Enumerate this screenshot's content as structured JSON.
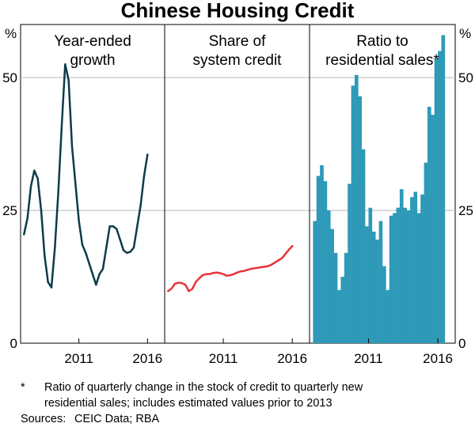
{
  "chart_data": {
    "type": "multi-panel",
    "title": "Chinese Housing Credit",
    "y_unit_left": "%",
    "y_unit_right": "%",
    "ylim": [
      0,
      60
    ],
    "yticks": [
      0,
      25,
      50
    ],
    "ytick_labels": [
      "0",
      "25",
      "50"
    ],
    "grid": true,
    "x_ticks": [
      2011,
      2016
    ],
    "x_tick_labels": [
      "2011",
      "2016"
    ],
    "xlim": [
      2006.75,
      2017.25
    ],
    "panels": [
      {
        "id": "growth",
        "type": "line",
        "label_lines": [
          "Year-ended",
          "growth"
        ],
        "color": "#0d3b4a",
        "x": [
          2007.0,
          2007.25,
          2007.5,
          2007.75,
          2008.0,
          2008.25,
          2008.5,
          2008.75,
          2009.0,
          2009.25,
          2009.5,
          2009.75,
          2010.0,
          2010.25,
          2010.5,
          2010.75,
          2011.0,
          2011.25,
          2011.5,
          2011.75,
          2012.0,
          2012.25,
          2012.5,
          2012.75,
          2013.0,
          2013.25,
          2013.5,
          2013.75,
          2014.0,
          2014.25,
          2014.5,
          2014.75,
          2015.0,
          2015.25,
          2015.5,
          2015.75,
          2016.0
        ],
        "values": [
          20.5,
          23.5,
          29.5,
          32.5,
          31.0,
          25.0,
          16.5,
          11.5,
          10.5,
          18.0,
          28.5,
          41.0,
          52.5,
          49.5,
          37.0,
          30.0,
          23.0,
          18.5,
          17.0,
          15.0,
          13.0,
          11.0,
          13.0,
          14.0,
          18.0,
          22.0,
          22.0,
          21.5,
          19.5,
          17.5,
          17.0,
          17.2,
          18.0,
          22.0,
          26.0,
          31.5,
          35.5
        ]
      },
      {
        "id": "share",
        "type": "line",
        "label_lines": [
          "Share of",
          "system credit"
        ],
        "color": "#e8333a",
        "x": [
          2007.0,
          2007.25,
          2007.5,
          2007.75,
          2008.0,
          2008.25,
          2008.5,
          2008.75,
          2009.0,
          2009.25,
          2009.5,
          2009.75,
          2010.0,
          2010.25,
          2010.5,
          2010.75,
          2011.0,
          2011.25,
          2011.5,
          2011.75,
          2012.0,
          2012.25,
          2012.5,
          2012.75,
          2013.0,
          2013.25,
          2013.5,
          2013.75,
          2014.0,
          2014.25,
          2014.5,
          2014.75,
          2015.0,
          2015.25,
          2015.5,
          2015.75,
          2016.0
        ],
        "values": [
          9.8,
          10.3,
          11.2,
          11.4,
          11.3,
          11.0,
          9.8,
          10.2,
          11.5,
          12.2,
          12.8,
          13.0,
          13.0,
          13.2,
          13.3,
          13.2,
          13.0,
          12.7,
          12.8,
          13.0,
          13.3,
          13.5,
          13.6,
          13.8,
          14.0,
          14.1,
          14.2,
          14.3,
          14.4,
          14.5,
          14.8,
          15.2,
          15.6,
          16.0,
          16.8,
          17.6,
          18.3
        ]
      },
      {
        "id": "ratio",
        "type": "bar",
        "label_lines": [
          "Ratio to",
          "residential sales*"
        ],
        "color": "#2e9ab8",
        "x": [
          2007.0,
          2007.25,
          2007.5,
          2007.75,
          2008.0,
          2008.25,
          2008.5,
          2008.75,
          2009.0,
          2009.25,
          2009.5,
          2009.75,
          2010.0,
          2010.25,
          2010.5,
          2010.75,
          2011.0,
          2011.25,
          2011.5,
          2011.75,
          2012.0,
          2012.25,
          2012.5,
          2012.75,
          2013.0,
          2013.25,
          2013.5,
          2013.75,
          2014.0,
          2014.25,
          2014.5,
          2014.75,
          2015.0,
          2015.25,
          2015.5,
          2015.75,
          2016.0,
          2016.25
        ],
        "values": [
          23.0,
          31.5,
          33.5,
          30.5,
          25.0,
          21.5,
          17.0,
          10.0,
          12.5,
          17.0,
          30.0,
          48.5,
          50.5,
          46.5,
          36.5,
          22.0,
          25.5,
          21.0,
          19.5,
          23.0,
          14.5,
          10.0,
          24.0,
          24.5,
          25.5,
          29.0,
          25.5,
          25.0,
          27.5,
          28.5,
          24.5,
          28.0,
          34.0,
          44.5,
          43.0,
          53.5,
          55.0,
          58.0
        ]
      }
    ]
  },
  "footnote": {
    "marker": "*",
    "lines": [
      "Ratio of quarterly change in the stock of credit to quarterly new",
      "residential sales; includes estimated values prior to 2013"
    ]
  },
  "sources": {
    "label": "Sources:",
    "text": "CEIC Data; RBA"
  }
}
